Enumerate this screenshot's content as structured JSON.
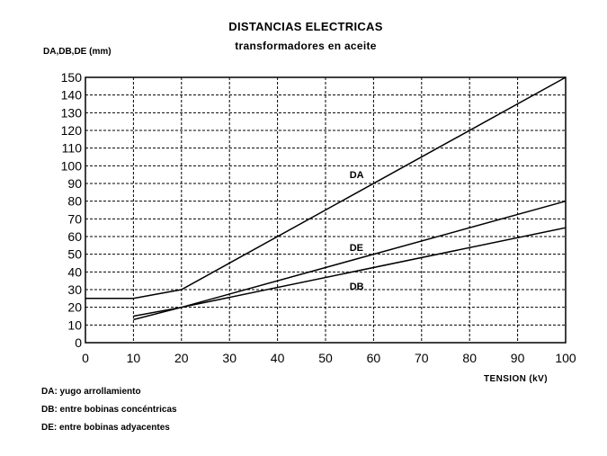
{
  "chart_data": {
    "type": "line",
    "title": "DISTANCIAS ELECTRICAS",
    "subtitle": "transformadores en aceite",
    "ylabel": "DA,DB,DE (mm)",
    "xlabel": "TENSION (kV)",
    "xlim": [
      0,
      100
    ],
    "ylim": [
      0,
      150
    ],
    "x_ticks": [
      0,
      10,
      20,
      30,
      40,
      50,
      60,
      70,
      80,
      90,
      100
    ],
    "y_ticks": [
      0,
      10,
      20,
      30,
      40,
      50,
      60,
      70,
      80,
      90,
      100,
      110,
      120,
      130,
      140,
      150
    ],
    "grid": true,
    "series": [
      {
        "name": "DA",
        "x": [
          0,
          10,
          20,
          100
        ],
        "y": [
          25,
          25,
          30,
          150
        ],
        "label_at": [
          55,
          95
        ]
      },
      {
        "name": "DE",
        "x": [
          10,
          20,
          100
        ],
        "y": [
          15,
          20,
          80
        ],
        "label_at": [
          55,
          54
        ]
      },
      {
        "name": "DB",
        "x": [
          10,
          20,
          100
        ],
        "y": [
          13,
          20,
          65
        ],
        "label_at": [
          55,
          32
        ]
      }
    ]
  },
  "legend": [
    "DA: yugo arrollamiento",
    "DB: entre bobinas concéntricas",
    "DE: entre bobinas adyacentes"
  ]
}
